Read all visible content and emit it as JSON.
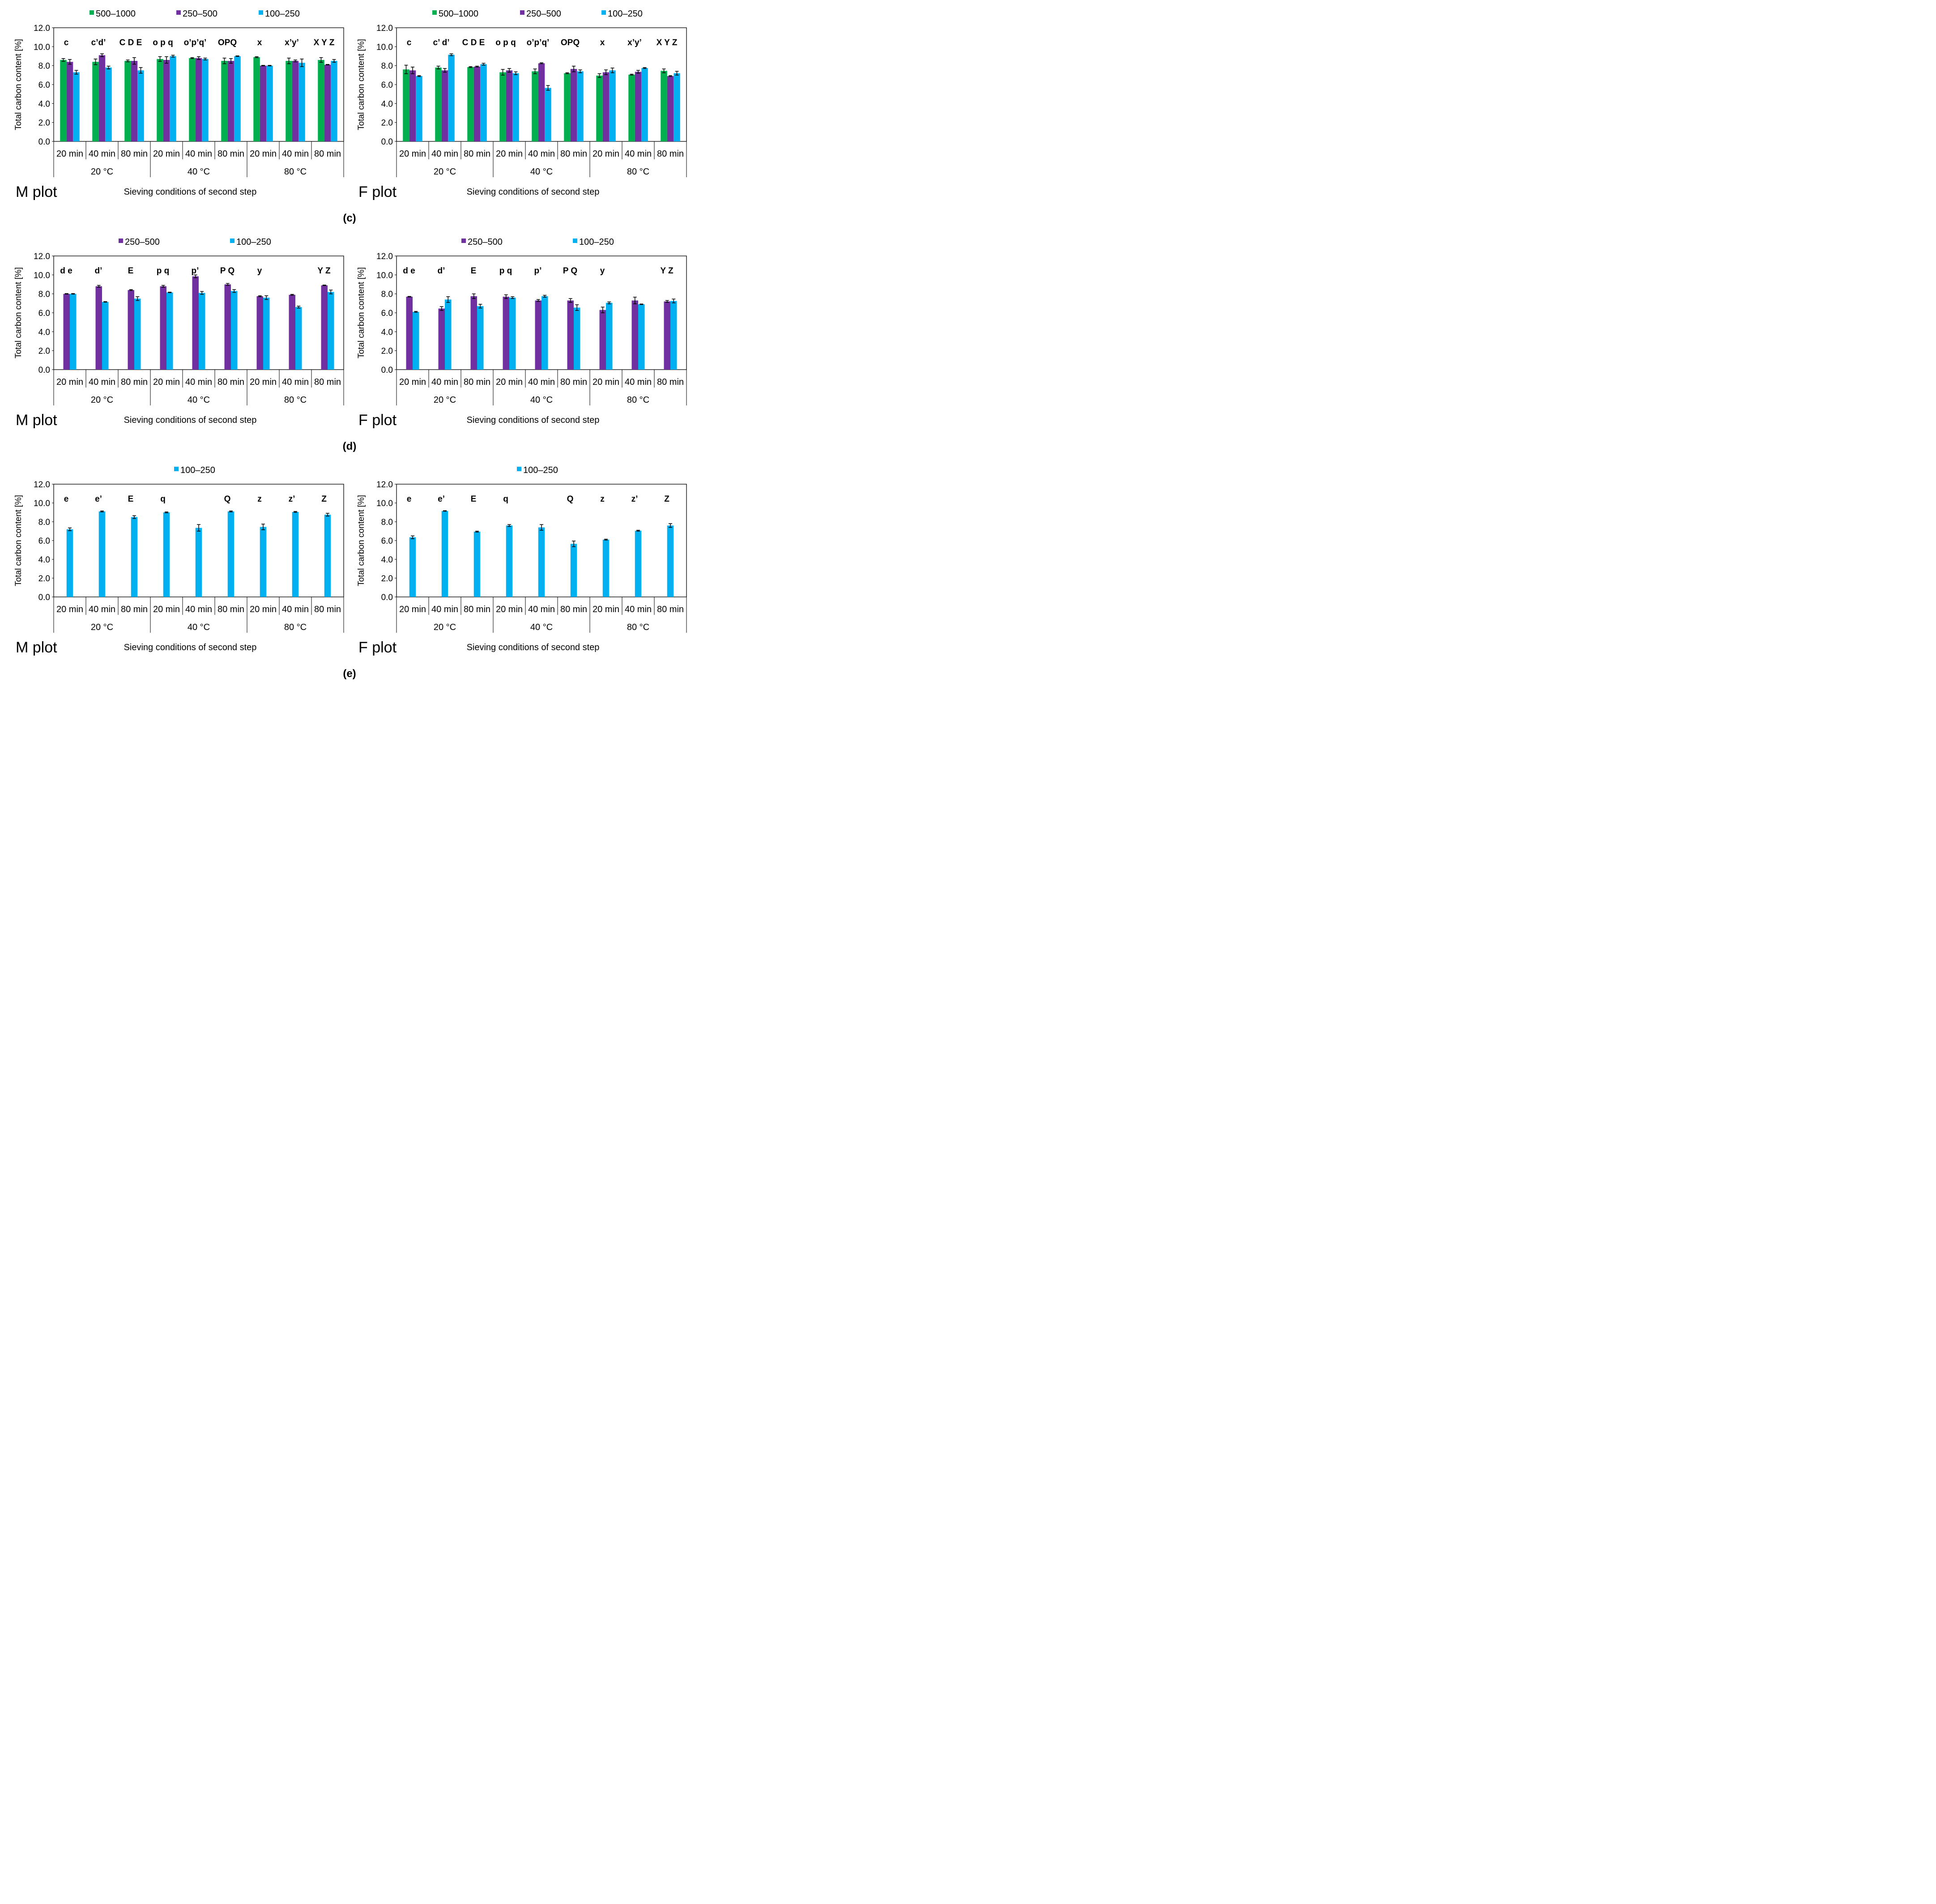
{
  "colors": {
    "c500": "#00b050",
    "c250": "#7030a0",
    "c100": "#00b0f0"
  },
  "common": {
    "ylabel": "Total carbon content [%]",
    "xlabel": "Sieving conditions of second step",
    "yticks": [
      "0.0",
      "2.0",
      "4.0",
      "6.0",
      "8.0",
      "10.0",
      "12.0"
    ],
    "ylim": [
      0,
      12
    ],
    "times": [
      "20 min",
      "40 min",
      "80 min",
      "20 min",
      "40 min",
      "80 min",
      "20 min",
      "40 min",
      "80 min"
    ],
    "temps": [
      "20 °C",
      "40 °C",
      "80 °C"
    ]
  },
  "panel_labels": [
    "(c)",
    "(d)",
    "(e)"
  ],
  "chart_data": [
    {
      "type": "bar",
      "title": "M plot",
      "panel": "c",
      "legend": [
        "500–1000",
        "250–500",
        "100–250"
      ],
      "letters": [
        "c",
        "c’d’",
        "C D E",
        "o p q",
        "o’p’q’",
        "OPQ",
        "x",
        "x’y’",
        "X Y Z"
      ],
      "series": [
        {
          "name": "500–1000",
          "color": "#00b050",
          "values": [
            8.6,
            8.4,
            8.5,
            8.7,
            8.8,
            8.5,
            8.9,
            8.5,
            8.6
          ],
          "errors": [
            0.15,
            0.3,
            0.1,
            0.25,
            0.05,
            0.3,
            0.05,
            0.3,
            0.25
          ]
        },
        {
          "name": "250–500",
          "color": "#7030a0",
          "values": [
            8.4,
            9.1,
            8.5,
            8.6,
            8.8,
            8.5,
            8.0,
            8.5,
            8.1
          ],
          "errors": [
            0.25,
            0.15,
            0.35,
            0.35,
            0.15,
            0.25,
            0.03,
            0.1,
            0.03
          ]
        },
        {
          "name": "100–250",
          "color": "#00b0f0",
          "values": [
            7.3,
            7.8,
            7.5,
            9.0,
            8.7,
            9.0,
            8.0,
            8.3,
            8.5
          ],
          "errors": [
            0.2,
            0.15,
            0.3,
            0.1,
            0.1,
            0.03,
            0.03,
            0.4,
            0.15
          ]
        }
      ]
    },
    {
      "type": "bar",
      "title": "F plot",
      "panel": "c",
      "legend": [
        "500–1000",
        "250–500",
        "100–250"
      ],
      "letters": [
        "c",
        "c’ d’",
        "C D E",
        "o p q",
        "o’p’q’",
        "OPQ",
        "x",
        "x’y’",
        "X Y Z"
      ],
      "series": [
        {
          "name": "500–1000",
          "color": "#00b050",
          "values": [
            7.6,
            7.8,
            7.85,
            7.3,
            7.4,
            7.2,
            6.95,
            7.05,
            7.45
          ],
          "errors": [
            0.45,
            0.15,
            0.05,
            0.3,
            0.25,
            0.05,
            0.2,
            0.05,
            0.2
          ]
        },
        {
          "name": "250–500",
          "color": "#7030a0",
          "values": [
            7.5,
            7.5,
            7.9,
            7.5,
            8.25,
            7.65,
            7.3,
            7.35,
            6.9
          ],
          "errors": [
            0.35,
            0.2,
            0.05,
            0.2,
            0.05,
            0.3,
            0.25,
            0.15,
            0.05
          ]
        },
        {
          "name": "100–250",
          "color": "#00b0f0",
          "values": [
            6.9,
            9.15,
            8.15,
            7.2,
            5.65,
            7.4,
            7.5,
            7.75,
            7.2
          ],
          "errors": [
            0.05,
            0.1,
            0.1,
            0.15,
            0.25,
            0.15,
            0.25,
            0.05,
            0.2
          ]
        }
      ]
    },
    {
      "type": "bar",
      "title": "M plot",
      "panel": "d",
      "legend": [
        "250–500",
        "100–250"
      ],
      "letters": [
        "d e",
        "d’",
        "E",
        "p q",
        "p’",
        "P Q",
        "y",
        "",
        "Y Z"
      ],
      "series": [
        {
          "name": "250–500",
          "color": "#7030a0",
          "values": [
            8.0,
            8.8,
            8.4,
            8.8,
            9.85,
            9.0,
            7.75,
            7.9,
            8.9
          ],
          "errors": [
            0.03,
            0.1,
            0.05,
            0.1,
            0.15,
            0.1,
            0.05,
            0.05,
            0.03
          ]
        },
        {
          "name": "100–250",
          "color": "#00b0f0",
          "values": [
            8.0,
            7.15,
            7.5,
            8.15,
            8.1,
            8.3,
            7.6,
            6.6,
            8.2
          ],
          "errors": [
            0.03,
            0.03,
            0.2,
            0.03,
            0.15,
            0.15,
            0.2,
            0.1,
            0.2
          ]
        }
      ]
    },
    {
      "type": "bar",
      "title": "F plot",
      "panel": "d",
      "legend": [
        "250–500",
        "100–250"
      ],
      "letters": [
        "d e",
        "d’",
        "E",
        "p q",
        "p’",
        "P Q",
        "y",
        "",
        "Y Z"
      ],
      "series": [
        {
          "name": "250–500",
          "color": "#7030a0",
          "values": [
            7.7,
            6.45,
            7.75,
            7.7,
            7.3,
            7.3,
            6.3,
            7.3,
            7.2
          ],
          "errors": [
            0.03,
            0.2,
            0.25,
            0.2,
            0.1,
            0.2,
            0.3,
            0.35,
            0.1
          ]
        },
        {
          "name": "100–250",
          "color": "#00b0f0",
          "values": [
            6.1,
            7.4,
            6.7,
            7.6,
            7.75,
            6.55,
            7.05,
            6.9,
            7.25
          ],
          "errors": [
            0.05,
            0.3,
            0.2,
            0.1,
            0.1,
            0.3,
            0.1,
            0.03,
            0.2
          ]
        }
      ]
    },
    {
      "type": "bar",
      "title": "M plot",
      "panel": "e",
      "legend": [
        "100–250"
      ],
      "letters": [
        "e",
        "e’",
        "E",
        "q",
        "",
        "Q",
        "z",
        "z’",
        "Z"
      ],
      "series": [
        {
          "name": "100–250",
          "color": "#00b0f0",
          "values": [
            7.2,
            9.1,
            8.5,
            9.0,
            7.35,
            9.1,
            7.45,
            9.05,
            8.75
          ],
          "errors": [
            0.15,
            0.05,
            0.15,
            0.05,
            0.35,
            0.05,
            0.3,
            0.05,
            0.15
          ]
        }
      ]
    },
    {
      "type": "bar",
      "title": "F plot",
      "panel": "e",
      "legend": [
        "100–250"
      ],
      "letters": [
        "e",
        "e’",
        "E",
        "q",
        "",
        "Q",
        "z",
        "z’",
        "Z"
      ],
      "series": [
        {
          "name": "100–250",
          "color": "#00b0f0",
          "values": [
            6.35,
            9.15,
            6.95,
            7.6,
            7.4,
            5.65,
            6.1,
            7.05,
            7.6
          ],
          "errors": [
            0.15,
            0.03,
            0.05,
            0.1,
            0.3,
            0.3,
            0.05,
            0.05,
            0.2
          ]
        }
      ]
    }
  ]
}
